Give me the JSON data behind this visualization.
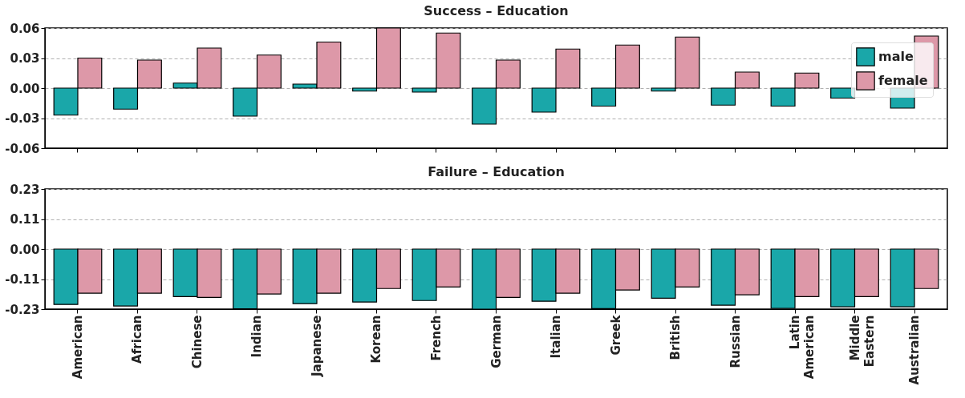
{
  "chart_data": [
    {
      "type": "bar",
      "title": "Success – Education",
      "categories": [
        null,
        null,
        null,
        null,
        null,
        null,
        null,
        null,
        null,
        null,
        null,
        null,
        null,
        null,
        null
      ],
      "series": [
        {
          "name": "male",
          "color": "#1aa7a9",
          "values": [
            -0.027,
            -0.021,
            0.005,
            -0.028,
            0.004,
            -0.003,
            -0.004,
            -0.036,
            -0.024,
            -0.018,
            -0.003,
            -0.017,
            -0.018,
            -0.01,
            -0.02
          ]
        },
        {
          "name": "female",
          "color": "#dd98a8",
          "values": [
            0.03,
            0.028,
            0.04,
            0.033,
            0.046,
            0.06,
            0.055,
            0.028,
            0.039,
            0.043,
            0.051,
            0.016,
            0.015,
            null,
            0.052
          ]
        }
      ],
      "ylim": [
        -0.06,
        0.06
      ],
      "yticks": [
        {
          "value": -0.06,
          "label": "-0.06"
        },
        {
          "value": -0.03,
          "label": "-0.03"
        },
        {
          "value": 0,
          "label": "0.00"
        },
        {
          "value": 0.03,
          "label": "0.03"
        },
        {
          "value": 0.06,
          "label": "0.06"
        }
      ],
      "grid": "y",
      "legend": "top right",
      "tick_labels": "y"
    },
    {
      "type": "bar",
      "title": "Failure – Education",
      "categories": [
        "American",
        "African",
        "Chinese",
        "Indian",
        "Japanese",
        "Korean",
        "French",
        "German",
        "Italian",
        "Greek",
        "British",
        "Russian",
        "Latin American",
        "Middle Eastern",
        "Australian"
      ],
      "series": [
        {
          "name": "male",
          "color": "#1aa7a9",
          "values": [
            -0.212,
            -0.218,
            -0.182,
            -0.229,
            -0.209,
            -0.203,
            -0.197,
            -0.23,
            -0.2,
            -0.228,
            -0.188,
            -0.215,
            -0.227,
            -0.221,
            -0.221
          ]
        },
        {
          "name": "female",
          "color": "#dd98a8",
          "values": [
            -0.169,
            -0.169,
            -0.185,
            -0.172,
            -0.169,
            -0.151,
            -0.145,
            -0.185,
            -0.169,
            -0.157,
            -0.145,
            -0.175,
            -0.182,
            -0.182,
            -0.151
          ]
        }
      ],
      "ylim": [
        -0.23,
        0.23
      ],
      "yticks": [
        {
          "value": -0.23,
          "label": "-0.23"
        },
        {
          "value": -0.115,
          "label": "-0.11"
        },
        {
          "value": 0,
          "label": "0.00"
        },
        {
          "value": 0.115,
          "label": "0.11"
        },
        {
          "value": 0.23,
          "label": "0.23"
        }
      ],
      "grid": "y",
      "legend": false
    }
  ]
}
